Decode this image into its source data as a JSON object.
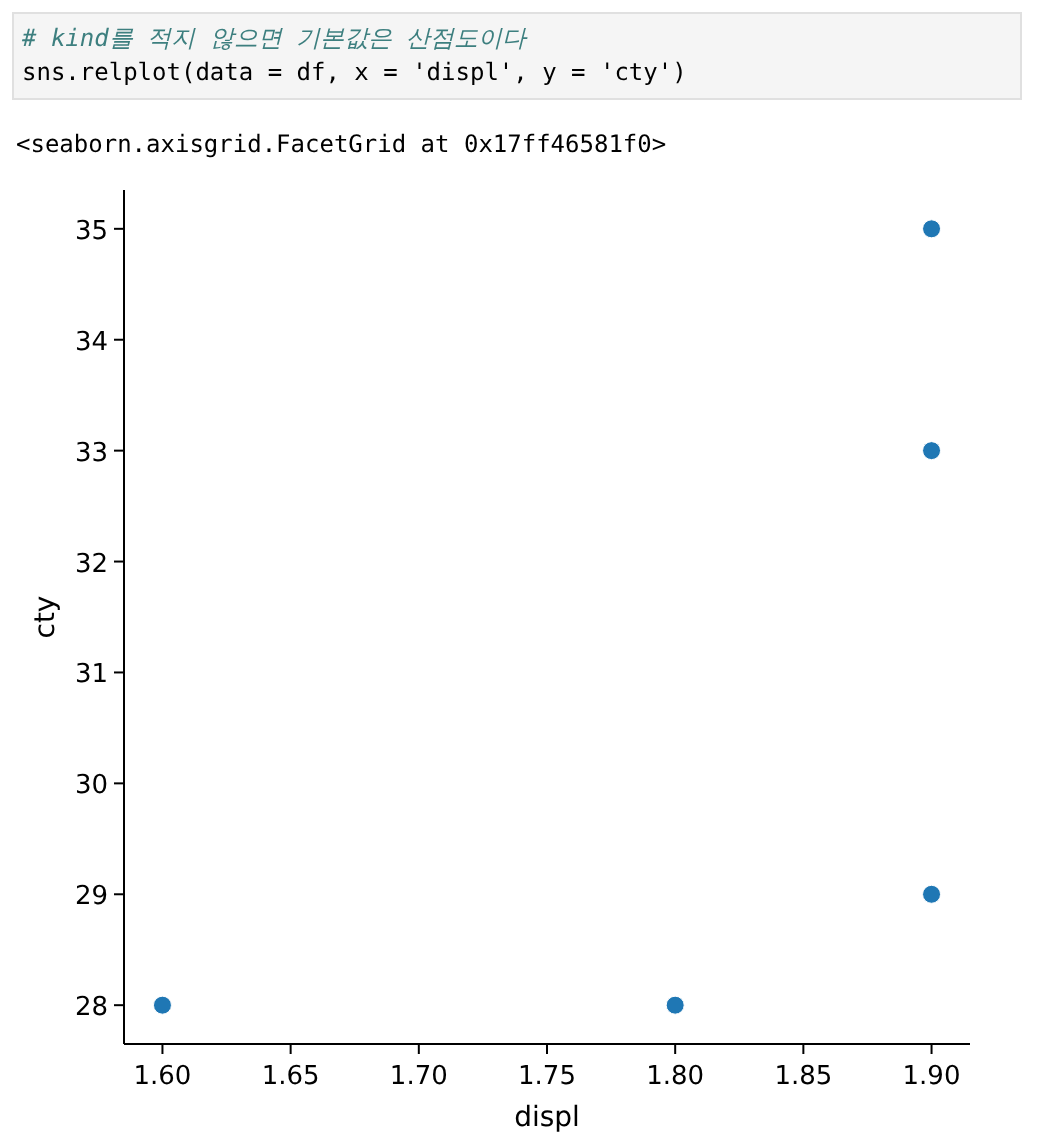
{
  "chart_data": {
    "type": "scatter",
    "annotations": [
      "# kind를 적지 않으면 기본값은 산점도이다",
      "sns.relplot(data = df, x = 'displ', y = 'cty')",
      "<seaborn.axisgrid.FacetGrid at 0x17ff46581f0>"
    ],
    "xlabel": "displ",
    "ylabel": "cty",
    "x": [
      1.6,
      1.8,
      1.9,
      1.9,
      1.9
    ],
    "values": [
      28,
      28,
      29,
      33,
      35
    ],
    "color": "#1f77b4",
    "marker": "circle",
    "xlim": [
      1.585,
      1.915
    ],
    "ylim": [
      27.65,
      35.35
    ],
    "xticks": [
      {
        "value": 1.6,
        "label": "1.60"
      },
      {
        "value": 1.65,
        "label": "1.65"
      },
      {
        "value": 1.7,
        "label": "1.70"
      },
      {
        "value": 1.75,
        "label": "1.75"
      },
      {
        "value": 1.8,
        "label": "1.80"
      },
      {
        "value": 1.85,
        "label": "1.85"
      },
      {
        "value": 1.9,
        "label": "1.90"
      }
    ],
    "yticks": [
      28,
      29,
      30,
      31,
      32,
      33,
      34,
      35
    ]
  }
}
